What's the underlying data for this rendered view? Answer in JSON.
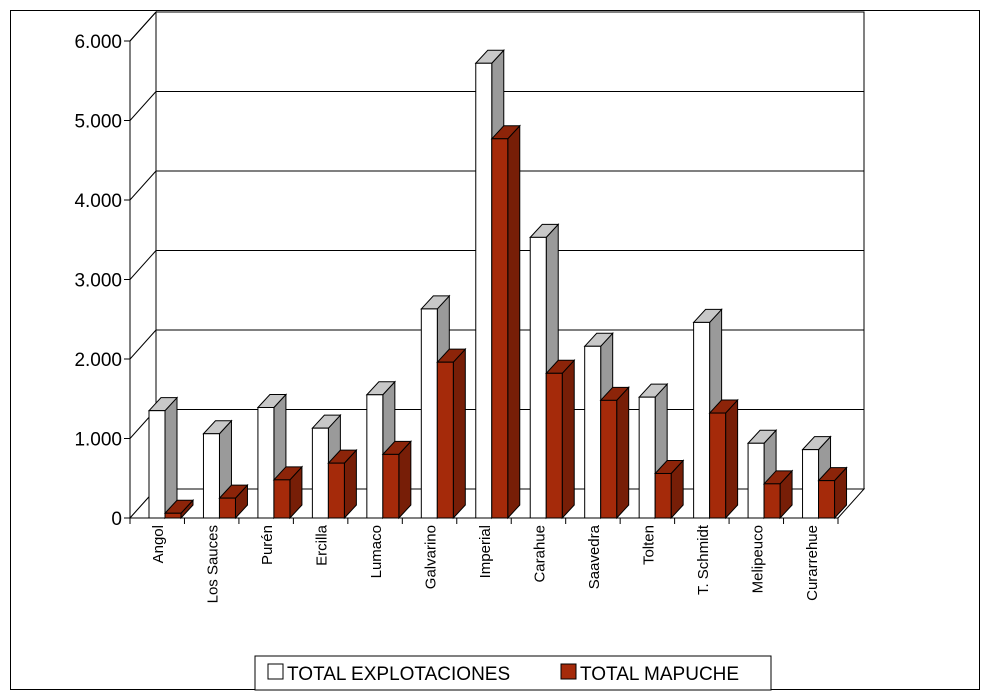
{
  "chart_data": {
    "type": "bar",
    "categories": [
      "Angol",
      "Los Sauces",
      "Purén",
      "Ercilla",
      "Lumaco",
      "Galvarino",
      "Imperial",
      "Carahue",
      "Saavedra",
      "Tolten",
      "T. Schmidt",
      "Melipeuco",
      "Curarrehue"
    ],
    "series": [
      {
        "name": "TOTAL EXPLOTACIONES",
        "color": "#ffffff",
        "values": [
          1350,
          1060,
          1390,
          1130,
          1550,
          2630,
          5720,
          3530,
          2160,
          1520,
          2460,
          940,
          860
        ]
      },
      {
        "name": "TOTAL MAPUCHE",
        "color": "#a52a0a",
        "values": [
          60,
          250,
          480,
          690,
          800,
          1960,
          4770,
          1820,
          1480,
          560,
          1320,
          430,
          470
        ]
      }
    ],
    "yticks": [
      "0",
      "1.000",
      "2.000",
      "3.000",
      "4.000",
      "5.000",
      "6.000"
    ],
    "ylim": [
      0,
      6000
    ],
    "grid": true,
    "legend_position": "bottom"
  }
}
